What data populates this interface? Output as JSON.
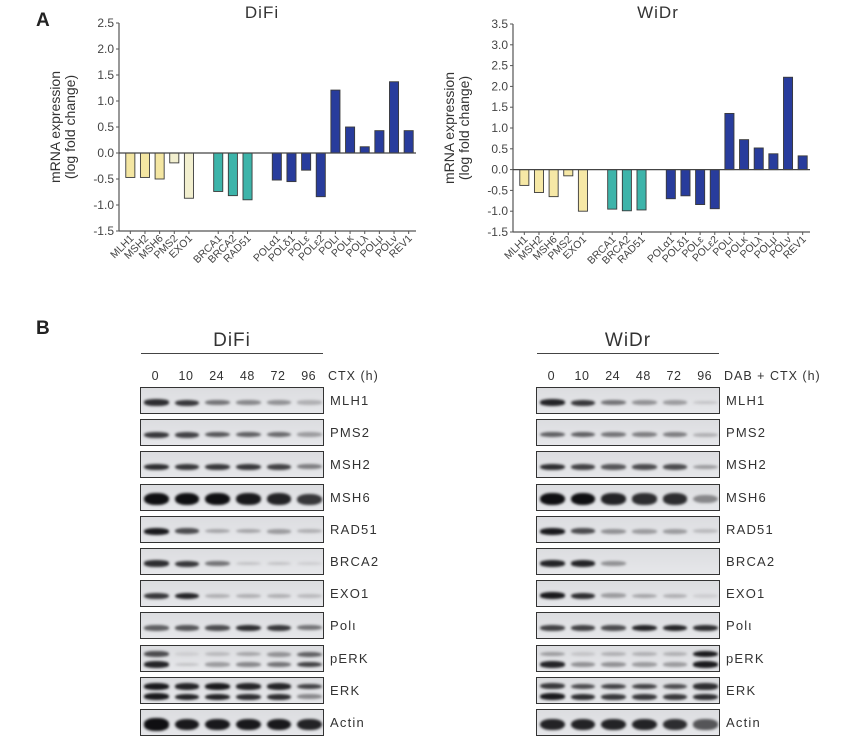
{
  "panel_a": {
    "letter": "A"
  },
  "panel_b": {
    "letter": "B"
  },
  "chart_data": [
    {
      "type": "bar",
      "title": "DiFi",
      "xlabel": "",
      "ylabel": "mRNA expression\n(log fold change)",
      "ylabel_lines": [
        "mRNA expression",
        "(log fold change)"
      ],
      "ylim": [
        -1.5,
        2.5
      ],
      "yticks": [
        "2.5",
        "2.0",
        "1.5",
        "1.0",
        "0.5",
        "0.0",
        "-0.5",
        "-1.0",
        "-1.5"
      ],
      "ytick_values": [
        2.5,
        2.0,
        1.5,
        1.0,
        0.5,
        0.0,
        -0.5,
        -1.0,
        -1.5
      ],
      "grid": false,
      "categories": [
        "MLH1",
        "MSH2",
        "MSH6",
        "PMS2",
        "EXO1",
        "BRCA1",
        "BRCA2",
        "RAD51",
        "POLα1",
        "POLδ1",
        "POLε",
        "POLε2",
        "POLι",
        "POLκ",
        "POLλ",
        "POLμ",
        "POLν",
        "REV1"
      ],
      "values": [
        -0.47,
        -0.47,
        -0.5,
        -0.19,
        -0.87,
        -0.74,
        -0.82,
        -0.9,
        -0.52,
        -0.55,
        -0.33,
        -0.84,
        1.21,
        0.5,
        0.12,
        0.43,
        1.37,
        0.43
      ],
      "groups": [
        0,
        0,
        0,
        0,
        0,
        1,
        1,
        1,
        2,
        2,
        2,
        2,
        2,
        2,
        2,
        2,
        2,
        2
      ],
      "colors": [
        "#f4e6a2",
        "#f4e6a2",
        "#f4e6a2",
        "#f2efcf",
        "#f2efcf",
        "#3db4aa",
        "#3db4aa",
        "#3db4aa",
        "#283c9c",
        "#283c9c",
        "#283c9c",
        "#283c9c",
        "#283c9c",
        "#283c9c",
        "#283c9c",
        "#283c9c",
        "#283c9c",
        "#283c9c"
      ]
    },
    {
      "type": "bar",
      "title": "WiDr",
      "xlabel": "",
      "ylabel": "mRNA expression\n(log fold change)",
      "ylabel_lines": [
        "mRNA expression",
        "(log fold change)"
      ],
      "ylim": [
        -1.5,
        3.5
      ],
      "yticks": [
        "3.5",
        "3.0",
        "2.5",
        "2.0",
        "1.5",
        "1.0",
        "0.5",
        "0.0",
        "-0.5",
        "-1.0",
        "-1.5"
      ],
      "ytick_values": [
        3.5,
        3.0,
        2.5,
        2.0,
        1.5,
        1.0,
        0.5,
        0.0,
        -0.5,
        -1.0,
        -1.5
      ],
      "grid": false,
      "categories": [
        "MLH1",
        "MSH2",
        "MSH6",
        "PMS2",
        "EXO1",
        "BRCA1",
        "BRCA2",
        "RAD51",
        "POLα1",
        "POLδ1",
        "POLε",
        "POLε2",
        "POLι",
        "POLκ",
        "POLλ",
        "POLμ",
        "POLν",
        "REV1"
      ],
      "values": [
        -0.38,
        -0.55,
        -0.65,
        -0.15,
        -1.0,
        -0.95,
        -0.99,
        -0.97,
        -0.7,
        -0.63,
        -0.84,
        -0.94,
        1.35,
        0.72,
        0.52,
        0.38,
        2.22,
        0.33
      ],
      "groups": [
        0,
        0,
        0,
        0,
        0,
        1,
        1,
        1,
        2,
        2,
        2,
        2,
        2,
        2,
        2,
        2,
        2,
        2
      ],
      "colors": [
        "#f6e8a6",
        "#f6e8a6",
        "#f6e8a6",
        "#f6e8a6",
        "#f6e8a6",
        "#3db4aa",
        "#3db4aa",
        "#3db4aa",
        "#283c9c",
        "#283c9c",
        "#283c9c",
        "#283c9c",
        "#283c9c",
        "#283c9c",
        "#283c9c",
        "#283c9c",
        "#283c9c",
        "#283c9c"
      ]
    }
  ],
  "blots": [
    {
      "cell_line": "DiFi",
      "lanes": [
        "0",
        "10",
        "24",
        "48",
        "72",
        "96"
      ],
      "condition_label": "CTX (h)",
      "rows": [
        {
          "protein": "MLH1",
          "bands": [
            [
              0.85
            ],
            [
              0.8
            ],
            [
              0.5
            ],
            [
              0.4
            ],
            [
              0.35
            ],
            [
              0.2
            ]
          ]
        },
        {
          "protein": "PMS2",
          "bands": [
            [
              0.8
            ],
            [
              0.75
            ],
            [
              0.65
            ],
            [
              0.6
            ],
            [
              0.55
            ],
            [
              0.3
            ]
          ]
        },
        {
          "protein": "MSH2",
          "bands": [
            [
              0.85
            ],
            [
              0.8
            ],
            [
              0.8
            ],
            [
              0.8
            ],
            [
              0.75
            ],
            [
              0.45
            ]
          ]
        },
        {
          "protein": "MSH6",
          "bands": [
            [
              1.0
            ],
            [
              1.0
            ],
            [
              1.0
            ],
            [
              0.95
            ],
            [
              0.9
            ],
            [
              0.8
            ]
          ]
        },
        {
          "protein": "RAD51",
          "bands": [
            [
              0.95
            ],
            [
              0.7
            ],
            [
              0.25
            ],
            [
              0.25
            ],
            [
              0.3
            ],
            [
              0.2
            ]
          ]
        },
        {
          "protein": "BRCA2",
          "bands": [
            [
              0.85
            ],
            [
              0.8
            ],
            [
              0.5
            ],
            [
              0.1
            ],
            [
              0.1
            ],
            [
              0.05
            ]
          ]
        },
        {
          "protein": "EXO1",
          "bands": [
            [
              0.8
            ],
            [
              0.9
            ],
            [
              0.2
            ],
            [
              0.2
            ],
            [
              0.2
            ],
            [
              0.15
            ]
          ]
        },
        {
          "protein": "Polι",
          "bands": [
            [
              0.6
            ],
            [
              0.65
            ],
            [
              0.7
            ],
            [
              0.85
            ],
            [
              0.8
            ],
            [
              0.5
            ]
          ]
        },
        {
          "protein": "pERK",
          "bands": [
            [
              0.7,
              0.9
            ],
            [
              0.05,
              0.1
            ],
            [
              0.15,
              0.3
            ],
            [
              0.25,
              0.4
            ],
            [
              0.35,
              0.5
            ],
            [
              0.6,
              0.75
            ]
          ]
        },
        {
          "protein": "ERK",
          "bands": [
            [
              0.95,
              0.95
            ],
            [
              0.9,
              0.9
            ],
            [
              0.95,
              0.9
            ],
            [
              0.9,
              0.85
            ],
            [
              0.9,
              0.85
            ],
            [
              0.75,
              0.4
            ]
          ]
        },
        {
          "protein": "Actin",
          "bands": [
            [
              1.0
            ],
            [
              0.95
            ],
            [
              0.95
            ],
            [
              0.95
            ],
            [
              0.95
            ],
            [
              0.9
            ]
          ]
        }
      ]
    },
    {
      "cell_line": "WiDr",
      "lanes": [
        "0",
        "10",
        "24",
        "48",
        "72",
        "96"
      ],
      "condition_label": "DAB + CTX (h)",
      "rows": [
        {
          "protein": "MLH1",
          "bands": [
            [
              0.9
            ],
            [
              0.8
            ],
            [
              0.5
            ],
            [
              0.35
            ],
            [
              0.3
            ],
            [
              0.1
            ]
          ]
        },
        {
          "protein": "PMS2",
          "bands": [
            [
              0.6
            ],
            [
              0.6
            ],
            [
              0.5
            ],
            [
              0.45
            ],
            [
              0.45
            ],
            [
              0.2
            ]
          ]
        },
        {
          "protein": "MSH2",
          "bands": [
            [
              0.85
            ],
            [
              0.75
            ],
            [
              0.65
            ],
            [
              0.7
            ],
            [
              0.7
            ],
            [
              0.3
            ]
          ]
        },
        {
          "protein": "MSH6",
          "bands": [
            [
              1.0
            ],
            [
              1.0
            ],
            [
              0.9
            ],
            [
              0.85
            ],
            [
              0.85
            ],
            [
              0.4
            ]
          ]
        },
        {
          "protein": "RAD51",
          "bands": [
            [
              0.95
            ],
            [
              0.7
            ],
            [
              0.35
            ],
            [
              0.3
            ],
            [
              0.3
            ],
            [
              0.15
            ]
          ]
        },
        {
          "protein": "BRCA2",
          "bands": [
            [
              0.9
            ],
            [
              0.9
            ],
            [
              0.35
            ],
            [
              0.0
            ],
            [
              0.0
            ],
            [
              0.0
            ]
          ]
        },
        {
          "protein": "EXO1",
          "bands": [
            [
              0.95
            ],
            [
              0.85
            ],
            [
              0.3
            ],
            [
              0.25
            ],
            [
              0.2
            ],
            [
              0.05
            ]
          ]
        },
        {
          "protein": "Polι",
          "bands": [
            [
              0.75
            ],
            [
              0.75
            ],
            [
              0.7
            ],
            [
              0.9
            ],
            [
              0.9
            ],
            [
              0.85
            ]
          ]
        },
        {
          "protein": "pERK",
          "bands": [
            [
              0.3,
              0.9
            ],
            [
              0.1,
              0.35
            ],
            [
              0.2,
              0.35
            ],
            [
              0.2,
              0.3
            ],
            [
              0.2,
              0.3
            ],
            [
              0.95,
              0.95
            ]
          ]
        },
        {
          "protein": "ERK",
          "bands": [
            [
              0.8,
              0.95
            ],
            [
              0.7,
              0.85
            ],
            [
              0.75,
              0.8
            ],
            [
              0.75,
              0.8
            ],
            [
              0.7,
              0.8
            ],
            [
              0.85,
              0.85
            ]
          ]
        },
        {
          "protein": "Actin",
          "bands": [
            [
              0.9
            ],
            [
              0.9
            ],
            [
              0.9
            ],
            [
              0.9
            ],
            [
              0.85
            ],
            [
              0.65
            ]
          ]
        }
      ]
    }
  ]
}
